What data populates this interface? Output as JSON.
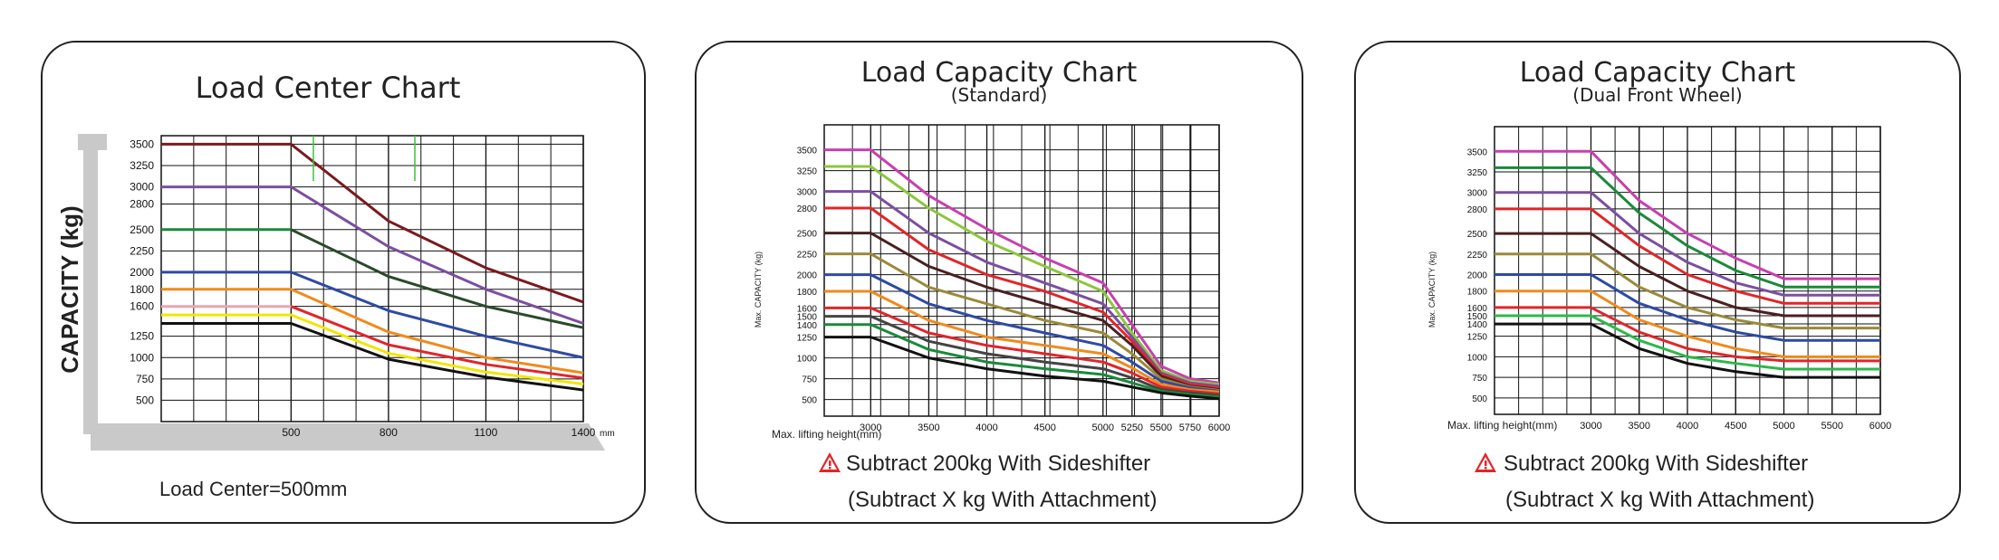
{
  "colors": {
    "maroon": "#7a1a1f",
    "purple": "#7b4f9f",
    "green": "#1a8a3a",
    "darkgreen": "#2b4a2a",
    "blue": "#2e4aa3",
    "orange": "#f08a1c",
    "red": "#e0262a",
    "pink": "#f2a3b0",
    "yellow": "#f2e600",
    "black": "#111111",
    "magenta": "#c83fb0",
    "lime": "#8cc63f",
    "olive": "#9a8a3a",
    "darkbrown": "#4a2020",
    "darkgray": "#444444",
    "limegreen": "#2db84a",
    "warning": "#e0262a"
  },
  "chart_data": [
    {
      "type": "line",
      "title": "Load Center Chart",
      "ylabel": "CAPACITY (kg)",
      "xlabel": "",
      "x_unit": "mm",
      "caption": "Load Center=500mm",
      "yticks": [
        "3500",
        "3250",
        "3000",
        "2800",
        "2500",
        "2250",
        "2000",
        "1800",
        "1600",
        "1250",
        "1000",
        "750",
        "500"
      ],
      "yticks_values": [
        3500,
        3250,
        3000,
        2800,
        2500,
        2250,
        2000,
        1800,
        1600,
        1250,
        1000,
        750,
        500
      ],
      "xticks": [
        "500",
        "800",
        "1100",
        "1400"
      ],
      "xticks_values": [
        500,
        800,
        1100,
        1400
      ],
      "xlim": [
        100,
        1400
      ],
      "ylim": [
        250,
        3600
      ],
      "grid": true,
      "series": [
        {
          "color": "maroon",
          "x": [
            100,
            500,
            800,
            1100,
            1400
          ],
          "values": [
            3500,
            3500,
            2600,
            2050,
            1650
          ]
        },
        {
          "color": "purple",
          "x": [
            100,
            500,
            800,
            1100,
            1400
          ],
          "values": [
            3000,
            3000,
            2300,
            1800,
            1400
          ]
        },
        {
          "color": "green",
          "x": [
            100,
            500
          ],
          "values": [
            2500,
            2500
          ]
        },
        {
          "color": "darkgreen",
          "x": [
            500,
            800,
            1100,
            1400
          ],
          "values": [
            2500,
            1950,
            1600,
            1350
          ]
        },
        {
          "color": "blue",
          "x": [
            100,
            500,
            800,
            1100,
            1400
          ],
          "values": [
            2000,
            2000,
            1550,
            1250,
            1000
          ]
        },
        {
          "color": "orange",
          "x": [
            100,
            500,
            800,
            1100,
            1400
          ],
          "values": [
            1800,
            1800,
            1300,
            1000,
            820
          ]
        },
        {
          "color": "red",
          "x": [
            500,
            800,
            1100,
            1400
          ],
          "values": [
            1600,
            1150,
            920,
            760
          ]
        },
        {
          "color": "pink",
          "x": [
            100,
            500
          ],
          "values": [
            1600,
            1600
          ]
        },
        {
          "color": "yellow",
          "x": [
            100,
            500,
            800,
            1100,
            1400
          ],
          "values": [
            1500,
            1500,
            1050,
            830,
            690
          ]
        },
        {
          "color": "black",
          "x": [
            100,
            500,
            800,
            1100,
            1400
          ],
          "values": [
            1400,
            1400,
            980,
            770,
            620
          ]
        }
      ]
    },
    {
      "type": "line",
      "title": "Load Capacity Chart",
      "subtitle": "(Standard)",
      "ylabel": "Max. CAPACITY (kg)",
      "xlabel": "Max. lifting height(mm)",
      "yticks": [
        "3500",
        "3250",
        "3000",
        "2800",
        "2500",
        "2250",
        "2000",
        "1800",
        "1600",
        "1500",
        "1400",
        "1250",
        "1000",
        "750",
        "500"
      ],
      "yticks_values": [
        3500,
        3250,
        3000,
        2800,
        2500,
        2250,
        2000,
        1800,
        1600,
        1500,
        1400,
        1250,
        1000,
        750,
        500
      ],
      "xticks": [
        "3000",
        "3500",
        "4000",
        "4500",
        "5000",
        "5250",
        "5500",
        "5750",
        "6000"
      ],
      "xticks_values": [
        3000,
        3500,
        4000,
        4500,
        5000,
        5250,
        5500,
        5750,
        6000
      ],
      "xlim": [
        2600,
        6000
      ],
      "ylim": [
        300,
        3800
      ],
      "grid": true,
      "series": [
        {
          "color": "magenta",
          "x": [
            2600,
            3000,
            3500,
            4000,
            4500,
            5000,
            5250,
            5500,
            5750,
            6000
          ],
          "values": [
            3500,
            3500,
            2950,
            2550,
            2200,
            1900,
            1400,
            900,
            750,
            700
          ]
        },
        {
          "color": "lime",
          "x": [
            2600,
            3000,
            3500,
            4000,
            4500,
            5000,
            5250,
            5500,
            5750,
            6000
          ],
          "values": [
            3300,
            3300,
            2800,
            2400,
            2100,
            1800,
            1300,
            850,
            720,
            680
          ]
        },
        {
          "color": "purple",
          "x": [
            2600,
            3000,
            3500,
            4000,
            4500,
            5000,
            5250,
            5500,
            5750,
            6000
          ],
          "values": [
            3000,
            3000,
            2500,
            2150,
            1900,
            1650,
            1250,
            820,
            700,
            660
          ]
        },
        {
          "color": "red",
          "x": [
            2600,
            3000,
            3500,
            4000,
            4500,
            5000,
            5250,
            5500,
            5750,
            6000
          ],
          "values": [
            2800,
            2800,
            2300,
            2000,
            1800,
            1550,
            1200,
            800,
            680,
            640
          ]
        },
        {
          "color": "darkbrown",
          "x": [
            2600,
            3000,
            3500,
            4000,
            4500,
            5000,
            5250,
            5500,
            5750,
            6000
          ],
          "values": [
            2500,
            2500,
            2100,
            1850,
            1650,
            1450,
            1150,
            780,
            660,
            620
          ]
        },
        {
          "color": "olive",
          "x": [
            2600,
            3000,
            3500,
            4000,
            4500,
            5000,
            5250,
            5500,
            5750,
            6000
          ],
          "values": [
            2250,
            2250,
            1850,
            1650,
            1450,
            1300,
            1050,
            750,
            650,
            610
          ]
        },
        {
          "color": "blue",
          "x": [
            2600,
            3000,
            3500,
            4000,
            4500,
            5000,
            5250,
            5500,
            5750,
            6000
          ],
          "values": [
            2000,
            2000,
            1650,
            1450,
            1300,
            1150,
            950,
            720,
            640,
            600
          ]
        },
        {
          "color": "orange",
          "x": [
            2600,
            3000,
            3500,
            4000,
            4500,
            5000,
            5250,
            5500,
            5750,
            6000
          ],
          "values": [
            1800,
            1800,
            1450,
            1250,
            1150,
            1050,
            880,
            680,
            620,
            590
          ]
        },
        {
          "color": "red",
          "x": [
            2600,
            3000,
            3500,
            4000,
            4500,
            5000,
            5250,
            5500,
            5750,
            6000
          ],
          "values": [
            1600,
            1600,
            1300,
            1150,
            1050,
            950,
            820,
            650,
            600,
            570
          ]
        },
        {
          "color": "darkgray",
          "x": [
            2600,
            3000,
            3500,
            4000,
            4500,
            5000,
            5250,
            5500,
            5750,
            6000
          ],
          "values": [
            1500,
            1500,
            1200,
            1050,
            950,
            870,
            760,
            620,
            580,
            550
          ]
        },
        {
          "color": "green",
          "x": [
            2600,
            3000,
            3500,
            4000,
            4500,
            5000,
            5250,
            5500,
            5750,
            6000
          ],
          "values": [
            1400,
            1400,
            1100,
            950,
            870,
            800,
            700,
            600,
            560,
            530
          ]
        },
        {
          "color": "black",
          "x": [
            2600,
            3000,
            3500,
            4000,
            4500,
            5000,
            5250,
            5500,
            5750,
            6000
          ],
          "values": [
            1250,
            1250,
            1000,
            870,
            780,
            720,
            650,
            580,
            540,
            510
          ]
        }
      ]
    },
    {
      "type": "line",
      "title": "Load Capacity Chart",
      "subtitle": "(Dual Front Wheel)",
      "ylabel": "Max. CAPACITY (kg)",
      "xlabel": "Max. lifting height(mm)",
      "yticks": [
        "3500",
        "3250",
        "3000",
        "2800",
        "2500",
        "2250",
        "2000",
        "1800",
        "1600",
        "1500",
        "1400",
        "1250",
        "1000",
        "750",
        "500"
      ],
      "yticks_values": [
        3500,
        3250,
        3000,
        2800,
        2500,
        2250,
        2000,
        1800,
        1600,
        1500,
        1400,
        1250,
        1000,
        750,
        500
      ],
      "xticks": [
        "3000",
        "3500",
        "4000",
        "4500",
        "5000",
        "5500",
        "6000"
      ],
      "xticks_values": [
        3000,
        3500,
        4000,
        4500,
        5000,
        5500,
        6000
      ],
      "xlim": [
        2000,
        6000
      ],
      "ylim": [
        300,
        3800
      ],
      "grid": true,
      "series": [
        {
          "color": "magenta",
          "x": [
            2000,
            3000,
            3500,
            4000,
            4500,
            5000,
            5500,
            6000
          ],
          "values": [
            3500,
            3500,
            2900,
            2500,
            2200,
            1950,
            1950,
            1950
          ]
        },
        {
          "color": "green",
          "x": [
            2000,
            3000,
            3500,
            4000,
            4500,
            5000,
            5500,
            6000
          ],
          "values": [
            3300,
            3300,
            2750,
            2350,
            2050,
            1850,
            1850,
            1850
          ]
        },
        {
          "color": "purple",
          "x": [
            2000,
            3000,
            3500,
            4000,
            4500,
            5000,
            5500,
            6000
          ],
          "values": [
            3000,
            3000,
            2500,
            2150,
            1900,
            1750,
            1750,
            1750
          ]
        },
        {
          "color": "red",
          "x": [
            2000,
            3000,
            3500,
            4000,
            4500,
            5000,
            5500,
            6000
          ],
          "values": [
            2800,
            2800,
            2350,
            2000,
            1800,
            1650,
            1650,
            1650
          ]
        },
        {
          "color": "darkbrown",
          "x": [
            2000,
            3000,
            3500,
            4000,
            4500,
            5000,
            5500,
            6000
          ],
          "values": [
            2500,
            2500,
            2100,
            1800,
            1600,
            1500,
            1500,
            1500
          ]
        },
        {
          "color": "olive",
          "x": [
            2000,
            3000,
            3500,
            4000,
            4500,
            5000,
            5500,
            6000
          ],
          "values": [
            2250,
            2250,
            1850,
            1600,
            1450,
            1350,
            1350,
            1350
          ]
        },
        {
          "color": "blue",
          "x": [
            2000,
            3000,
            3500,
            4000,
            4500,
            5000,
            5500,
            6000
          ],
          "values": [
            2000,
            2000,
            1650,
            1450,
            1300,
            1200,
            1200,
            1200
          ]
        },
        {
          "color": "orange",
          "x": [
            2000,
            3000,
            3500,
            4000,
            4500,
            5000,
            5500,
            6000
          ],
          "values": [
            1800,
            1800,
            1450,
            1250,
            1100,
            1000,
            1000,
            1000
          ]
        },
        {
          "color": "red",
          "x": [
            2000,
            3000,
            3500,
            4000,
            4500,
            5000,
            5500,
            6000
          ],
          "values": [
            1600,
            1600,
            1300,
            1100,
            1000,
            950,
            950,
            950
          ]
        },
        {
          "color": "limegreen",
          "x": [
            2000,
            3000,
            3500,
            4000,
            4500,
            5000,
            5500,
            6000
          ],
          "values": [
            1500,
            1500,
            1200,
            1000,
            920,
            850,
            850,
            850
          ]
        },
        {
          "color": "black",
          "x": [
            2000,
            3000,
            3500,
            4000,
            4500,
            5000,
            5500,
            6000
          ],
          "values": [
            1400,
            1400,
            1100,
            920,
            820,
            750,
            750,
            750
          ]
        }
      ]
    }
  ],
  "notes": {
    "sideshifter": "Subtract 200kg With Sideshifter",
    "attachment": "(Subtract X kg With Attachment)"
  }
}
